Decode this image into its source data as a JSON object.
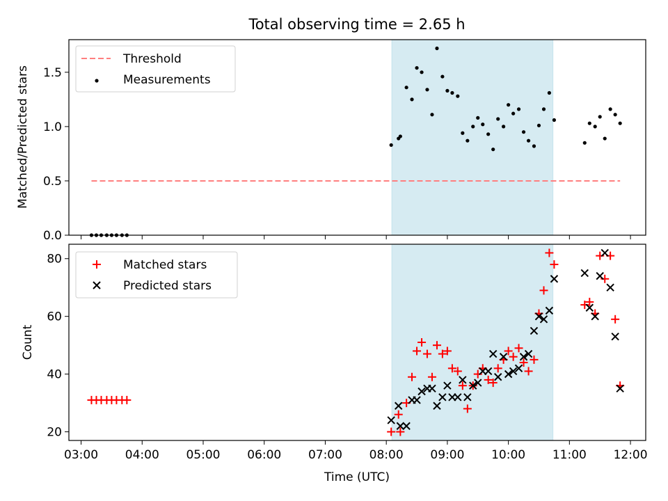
{
  "chart_data": [
    {
      "type": "scatter",
      "title": "Total observing time = 2.65 h",
      "xlabel": "",
      "ylabel": "Matched/Predicted stars",
      "x_unit": "hours UTC",
      "xlim": [
        2.8,
        12.25
      ],
      "ylim": [
        0,
        1.8
      ],
      "yticks": [
        "0.0",
        "0.5",
        "1.0",
        "1.5"
      ],
      "grid": false,
      "legend_position": "top-left",
      "shaded_interval": {
        "x0": 8.09,
        "x1": 10.73,
        "color": "#add8e6"
      },
      "threshold": {
        "name": "Threshold",
        "y": 0.5,
        "x0": 3.17,
        "x1": 11.83,
        "color": "#ff7f7f",
        "style": "dashed"
      },
      "series": [
        {
          "name": "Measurements",
          "color": "#000000",
          "marker": "dot",
          "x": [
            3.17,
            3.25,
            3.33,
            3.42,
            3.5,
            3.58,
            3.67,
            3.75,
            8.08,
            8.2,
            8.23,
            8.33,
            8.42,
            8.5,
            8.58,
            8.67,
            8.75,
            8.83,
            8.92,
            9.0,
            9.08,
            9.17,
            9.25,
            9.33,
            9.42,
            9.5,
            9.58,
            9.67,
            9.75,
            9.83,
            9.92,
            10.0,
            10.08,
            10.17,
            10.25,
            10.33,
            10.42,
            10.5,
            10.58,
            10.67,
            10.75,
            11.25,
            11.33,
            11.42,
            11.5,
            11.58,
            11.67,
            11.75,
            11.83
          ],
          "y": [
            0,
            0,
            0,
            0,
            0,
            0,
            0,
            0,
            0.83,
            0.89,
            0.91,
            1.36,
            1.25,
            1.54,
            1.5,
            1.34,
            1.11,
            1.72,
            1.46,
            1.33,
            1.31,
            1.28,
            0.94,
            0.87,
            1.0,
            1.08,
            1.02,
            0.93,
            0.79,
            1.07,
            1.0,
            1.2,
            1.12,
            1.16,
            0.95,
            0.87,
            0.82,
            1.01,
            1.16,
            1.31,
            1.06,
            0.85,
            1.03,
            1.0,
            1.09,
            0.89,
            1.16,
            1.11,
            1.03
          ]
        }
      ]
    },
    {
      "type": "scatter",
      "title": "",
      "xlabel": "Time (UTC)",
      "ylabel": "Count",
      "x_unit": "hours UTC",
      "xlim": [
        2.8,
        12.25
      ],
      "ylim": [
        17,
        85
      ],
      "xticks": [
        "03:00",
        "04:00",
        "05:00",
        "06:00",
        "07:00",
        "08:00",
        "09:00",
        "10:00",
        "11:00",
        "12:00"
      ],
      "yticks": [
        "20",
        "40",
        "60",
        "80"
      ],
      "grid": false,
      "legend_position": "top-left",
      "shaded_interval": {
        "x0": 8.09,
        "x1": 10.73,
        "color": "#add8e6"
      },
      "series": [
        {
          "name": "Matched stars",
          "color": "#ff0000",
          "marker": "plus",
          "x": [
            3.17,
            3.25,
            3.33,
            3.42,
            3.5,
            3.58,
            3.67,
            3.75,
            8.08,
            8.2,
            8.23,
            8.33,
            8.42,
            8.5,
            8.58,
            8.67,
            8.75,
            8.83,
            8.92,
            9.0,
            9.08,
            9.17,
            9.25,
            9.33,
            9.42,
            9.5,
            9.58,
            9.67,
            9.75,
            9.83,
            9.92,
            10.0,
            10.08,
            10.17,
            10.25,
            10.33,
            10.42,
            10.5,
            10.58,
            10.67,
            10.75,
            11.25,
            11.33,
            11.42,
            11.5,
            11.58,
            11.67,
            11.75,
            11.83
          ],
          "y": [
            31,
            31,
            31,
            31,
            31,
            31,
            31,
            31,
            20,
            26,
            20,
            30,
            39,
            48,
            51,
            47,
            39,
            50,
            47,
            48,
            42,
            41,
            36,
            28,
            36,
            40,
            42,
            38,
            37,
            42,
            45,
            48,
            46,
            49,
            44,
            41,
            45,
            61,
            69,
            82,
            78,
            64,
            65,
            61,
            81,
            73,
            81,
            59,
            36
          ]
        },
        {
          "name": "Predicted stars",
          "color": "#000000",
          "marker": "x",
          "x": [
            8.08,
            8.2,
            8.23,
            8.33,
            8.42,
            8.5,
            8.58,
            8.67,
            8.75,
            8.83,
            8.92,
            9.0,
            9.08,
            9.17,
            9.25,
            9.33,
            9.42,
            9.5,
            9.58,
            9.67,
            9.75,
            9.83,
            9.92,
            10.0,
            10.08,
            10.17,
            10.25,
            10.33,
            10.42,
            10.5,
            10.58,
            10.67,
            10.75,
            11.25,
            11.33,
            11.42,
            11.5,
            11.58,
            11.67,
            11.75,
            11.83
          ],
          "y": [
            24,
            29,
            22,
            22,
            31,
            31,
            34,
            35,
            35,
            29,
            32,
            36,
            32,
            32,
            38,
            32,
            36,
            37,
            41,
            41,
            47,
            39,
            46,
            40,
            41,
            42,
            46,
            47,
            55,
            60,
            59,
            62,
            73,
            75,
            63,
            60,
            74,
            82,
            70,
            53,
            35
          ]
        }
      ]
    }
  ]
}
